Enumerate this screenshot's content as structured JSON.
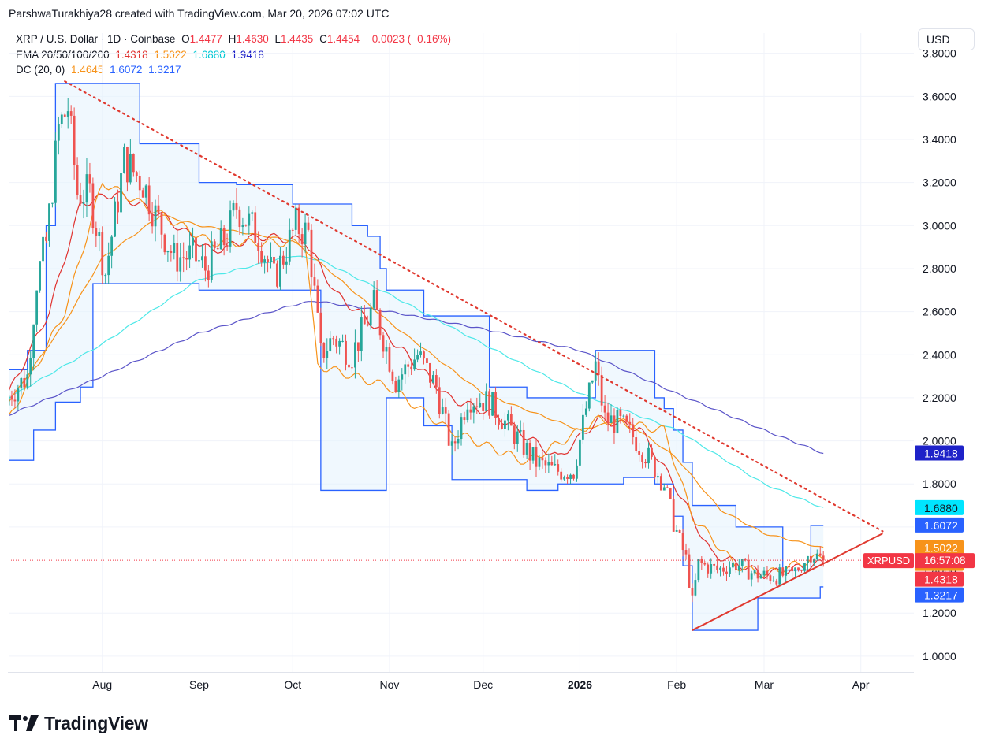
{
  "attribution": "ParshwaTurakhiya28 created with TradingView.com, Mar 20, 2026 07:02 UTC",
  "currency_button": "USD",
  "legend": {
    "symbol": "XRP / U.S. Dollar · 1D · Coinbase",
    "o_label": "O",
    "o": "1.4477",
    "h_label": "H",
    "h": "1.4630",
    "l_label": "L",
    "l": "1.4435",
    "c_label": "C",
    "c": "1.4454",
    "change": "−0.0023 (−0.16%)",
    "ema_label": "EMA 20/50/100/200",
    "ema20": "1.4318",
    "ema50": "1.5022",
    "ema100": "1.6880",
    "ema200": "1.9418",
    "dc_label": "DC (20, 0)",
    "dc_mid": "1.4645",
    "dc_upper": "1.6072",
    "dc_lower": "1.3217"
  },
  "logo_text": "TradingView",
  "colors": {
    "up": "#26a69a",
    "down": "#ef5350",
    "ema20": "#e0322f",
    "ema50": "#f7931a",
    "ema100": "#4de8e8",
    "ema200": "#5b55c9",
    "dc_band": "#2962ff",
    "dc_mid": "#f7931a",
    "dc_fill": "#e3f2fd",
    "trendline": "#e0392f"
  },
  "chart_data": {
    "type": "candlestick",
    "title": "XRP / U.S. Dollar · 1D · Coinbase",
    "y_axis": {
      "ticks": [
        "1.0000",
        "1.2000",
        "1.4000",
        "1.6000",
        "1.8000",
        "2.0000",
        "2.2000",
        "2.4000",
        "2.6000",
        "2.8000",
        "3.0000",
        "3.2000",
        "3.4000",
        "3.6000",
        "3.8000"
      ],
      "ylim": [
        0.93,
        3.85
      ],
      "position": "right"
    },
    "x_axis": {
      "ticks": [
        {
          "label": "Aug",
          "date": "2025-08-01"
        },
        {
          "label": "Sep",
          "date": "2025-09-01"
        },
        {
          "label": "Oct",
          "date": "2025-10-01"
        },
        {
          "label": "Nov",
          "date": "2025-11-01"
        },
        {
          "label": "Dec",
          "date": "2025-12-01"
        },
        {
          "label": "2026",
          "date": "2026-01-01",
          "bold": true
        },
        {
          "label": "Feb",
          "date": "2026-02-01"
        },
        {
          "label": "Mar",
          "date": "2026-03-01"
        },
        {
          "label": "Apr",
          "date": "2026-04-01"
        }
      ],
      "range": [
        "2025-07-02",
        "2026-04-18"
      ]
    },
    "grid": true,
    "close_keypoints": [
      {
        "date": "2025-07-02",
        "close": 2.21
      },
      {
        "date": "2025-07-08",
        "close": 2.3
      },
      {
        "date": "2025-07-11",
        "close": 2.75
      },
      {
        "date": "2025-07-14",
        "close": 2.92
      },
      {
        "date": "2025-07-18",
        "close": 3.45
      },
      {
        "date": "2025-07-21",
        "close": 3.55
      },
      {
        "date": "2025-07-24",
        "close": 3.15
      },
      {
        "date": "2025-07-28",
        "close": 3.15
      },
      {
        "date": "2025-08-02",
        "close": 2.78
      },
      {
        "date": "2025-08-08",
        "close": 3.3
      },
      {
        "date": "2025-08-14",
        "close": 3.2
      },
      {
        "date": "2025-08-18",
        "close": 3.05
      },
      {
        "date": "2025-08-24",
        "close": 2.85
      },
      {
        "date": "2025-08-30",
        "close": 2.86
      },
      {
        "date": "2025-09-03",
        "close": 2.8
      },
      {
        "date": "2025-09-10",
        "close": 2.95
      },
      {
        "date": "2025-09-13",
        "close": 3.09
      },
      {
        "date": "2025-09-20",
        "close": 2.95
      },
      {
        "date": "2025-09-25",
        "close": 2.75
      },
      {
        "date": "2025-10-02",
        "close": 3.0
      },
      {
        "date": "2025-10-06",
        "close": 2.96
      },
      {
        "date": "2025-10-10",
        "close": 2.4
      },
      {
        "date": "2025-10-14",
        "close": 2.48
      },
      {
        "date": "2025-10-20",
        "close": 2.4
      },
      {
        "date": "2025-10-27",
        "close": 2.63
      },
      {
        "date": "2025-11-03",
        "close": 2.28
      },
      {
        "date": "2025-11-10",
        "close": 2.4
      },
      {
        "date": "2025-11-16",
        "close": 2.25
      },
      {
        "date": "2025-11-21",
        "close": 1.95
      },
      {
        "date": "2025-11-26",
        "close": 2.2
      },
      {
        "date": "2025-12-03",
        "close": 2.18
      },
      {
        "date": "2025-12-10",
        "close": 2.05
      },
      {
        "date": "2025-12-18",
        "close": 1.9
      },
      {
        "date": "2025-12-24",
        "close": 1.86
      },
      {
        "date": "2025-12-30",
        "close": 1.86
      },
      {
        "date": "2026-01-03",
        "close": 2.15
      },
      {
        "date": "2026-01-06",
        "close": 2.35
      },
      {
        "date": "2026-01-09",
        "close": 2.1
      },
      {
        "date": "2026-01-14",
        "close": 2.08
      },
      {
        "date": "2026-01-18",
        "close": 2.02
      },
      {
        "date": "2026-01-23",
        "close": 1.92
      },
      {
        "date": "2026-01-28",
        "close": 1.8
      },
      {
        "date": "2026-01-31",
        "close": 1.62
      },
      {
        "date": "2026-02-04",
        "close": 1.45
      },
      {
        "date": "2026-02-06",
        "close": 1.25
      },
      {
        "date": "2026-02-08",
        "close": 1.43
      },
      {
        "date": "2026-02-14",
        "close": 1.4
      },
      {
        "date": "2026-02-20",
        "close": 1.43
      },
      {
        "date": "2026-02-26",
        "close": 1.38
      },
      {
        "date": "2026-03-03",
        "close": 1.37
      },
      {
        "date": "2026-03-10",
        "close": 1.38
      },
      {
        "date": "2026-03-16",
        "close": 1.48
      },
      {
        "date": "2026-03-20",
        "close": 1.4454
      }
    ],
    "lines": [
      {
        "name": "EMA 200",
        "color": "#5b55c9",
        "points": [
          {
            "date": "2025-07-02",
            "value": 2.12
          },
          {
            "date": "2025-08-01",
            "value": 2.3
          },
          {
            "date": "2025-09-01",
            "value": 2.5
          },
          {
            "date": "2025-10-01",
            "value": 2.63
          },
          {
            "date": "2025-10-08",
            "value": 2.65
          },
          {
            "date": "2025-11-01",
            "value": 2.6
          },
          {
            "date": "2025-12-01",
            "value": 2.52
          },
          {
            "date": "2026-01-01",
            "value": 2.42
          },
          {
            "date": "2026-02-01",
            "value": 2.22
          },
          {
            "date": "2026-03-01",
            "value": 2.05
          },
          {
            "date": "2026-03-20",
            "value": 1.9418
          }
        ]
      },
      {
        "name": "EMA 100",
        "color": "#4de8e8",
        "points": [
          {
            "date": "2025-07-02",
            "value": 2.2
          },
          {
            "date": "2025-08-01",
            "value": 2.45
          },
          {
            "date": "2025-09-01",
            "value": 2.75
          },
          {
            "date": "2025-10-01",
            "value": 2.86
          },
          {
            "date": "2025-10-10",
            "value": 2.84
          },
          {
            "date": "2025-11-01",
            "value": 2.68
          },
          {
            "date": "2025-12-01",
            "value": 2.45
          },
          {
            "date": "2026-01-01",
            "value": 2.22
          },
          {
            "date": "2026-02-01",
            "value": 2.05
          },
          {
            "date": "2026-03-01",
            "value": 1.8
          },
          {
            "date": "2026-03-20",
            "value": 1.688
          }
        ]
      },
      {
        "name": "EMA 50",
        "color": "#f7931a",
        "points": [
          {
            "date": "2025-07-02",
            "value": 2.18
          },
          {
            "date": "2025-07-20",
            "value": 2.55
          },
          {
            "date": "2025-08-01",
            "value": 2.85
          },
          {
            "date": "2025-08-20",
            "value": 3.05
          },
          {
            "date": "2025-09-01",
            "value": 3.0
          },
          {
            "date": "2025-10-01",
            "value": 2.93
          },
          {
            "date": "2025-10-12",
            "value": 2.8
          },
          {
            "date": "2025-11-01",
            "value": 2.55
          },
          {
            "date": "2025-12-01",
            "value": 2.22
          },
          {
            "date": "2026-01-01",
            "value": 2.05
          },
          {
            "date": "2026-01-15",
            "value": 2.1
          },
          {
            "date": "2026-02-01",
            "value": 1.92
          },
          {
            "date": "2026-02-15",
            "value": 1.68
          },
          {
            "date": "2026-03-01",
            "value": 1.57
          },
          {
            "date": "2026-03-20",
            "value": 1.5022
          }
        ]
      },
      {
        "name": "EMA 20",
        "color": "#e0322f",
        "points": [
          {
            "date": "2025-07-02",
            "value": 2.22
          },
          {
            "date": "2025-07-15",
            "value": 2.6
          },
          {
            "date": "2025-07-25",
            "value": 3.1
          },
          {
            "date": "2025-08-05",
            "value": 3.15
          },
          {
            "date": "2025-08-20",
            "value": 3.05
          },
          {
            "date": "2025-09-05",
            "value": 2.88
          },
          {
            "date": "2025-09-20",
            "value": 2.95
          },
          {
            "date": "2025-10-05",
            "value": 2.93
          },
          {
            "date": "2025-10-15",
            "value": 2.68
          },
          {
            "date": "2025-11-01",
            "value": 2.48
          },
          {
            "date": "2025-11-20",
            "value": 2.2
          },
          {
            "date": "2025-12-05",
            "value": 2.12
          },
          {
            "date": "2025-12-25",
            "value": 1.92
          },
          {
            "date": "2026-01-07",
            "value": 2.1
          },
          {
            "date": "2026-01-20",
            "value": 2.06
          },
          {
            "date": "2026-02-01",
            "value": 1.78
          },
          {
            "date": "2026-02-12",
            "value": 1.48
          },
          {
            "date": "2026-03-01",
            "value": 1.38
          },
          {
            "date": "2026-03-20",
            "value": 1.4318
          }
        ]
      },
      {
        "name": "DC mid",
        "color": "#f7931a",
        "points": [
          {
            "date": "2025-07-02",
            "value": 2.1
          },
          {
            "date": "2025-07-20",
            "value": 2.6
          },
          {
            "date": "2025-08-01",
            "value": 3.2
          },
          {
            "date": "2025-08-20",
            "value": 3.05
          },
          {
            "date": "2025-09-05",
            "value": 2.92
          },
          {
            "date": "2025-10-05",
            "value": 2.92
          },
          {
            "date": "2025-10-09",
            "value": 2.35
          },
          {
            "date": "2025-11-01",
            "value": 2.25
          },
          {
            "date": "2025-11-20",
            "value": 2.05
          },
          {
            "date": "2025-12-15",
            "value": 1.9
          },
          {
            "date": "2026-01-07",
            "value": 2.1
          },
          {
            "date": "2026-01-28",
            "value": 2.05
          },
          {
            "date": "2026-02-06",
            "value": 1.65
          },
          {
            "date": "2026-02-20",
            "value": 1.42
          },
          {
            "date": "2026-03-01",
            "value": 1.38
          },
          {
            "date": "2026-03-20",
            "value": 1.4645
          }
        ]
      }
    ],
    "donchian_steps": [
      {
        "date": "2025-07-02",
        "upper": 2.33,
        "lower": 1.91
      },
      {
        "date": "2025-07-07",
        "upper": 2.33,
        "lower": 1.91
      },
      {
        "date": "2025-07-08",
        "upper": 2.42,
        "lower": 1.91
      },
      {
        "date": "2025-07-10",
        "upper": 2.42,
        "lower": 2.05
      },
      {
        "date": "2025-07-14",
        "upper": 3.0,
        "lower": 2.05
      },
      {
        "date": "2025-07-17",
        "upper": 3.66,
        "lower": 2.18
      },
      {
        "date": "2025-07-25",
        "upper": 3.66,
        "lower": 2.25
      },
      {
        "date": "2025-07-29",
        "upper": 3.66,
        "lower": 2.73
      },
      {
        "date": "2025-08-10",
        "upper": 3.66,
        "lower": 2.73
      },
      {
        "date": "2025-08-13",
        "upper": 3.38,
        "lower": 2.73
      },
      {
        "date": "2025-08-28",
        "upper": 3.38,
        "lower": 2.73
      },
      {
        "date": "2025-09-01",
        "upper": 3.2,
        "lower": 2.7
      },
      {
        "date": "2025-09-12",
        "upper": 3.2,
        "lower": 2.7
      },
      {
        "date": "2025-09-13",
        "upper": 3.19,
        "lower": 2.7
      },
      {
        "date": "2025-09-26",
        "upper": 3.19,
        "lower": 2.7
      },
      {
        "date": "2025-10-01",
        "upper": 3.1,
        "lower": 2.7
      },
      {
        "date": "2025-10-09",
        "upper": 3.1,
        "lower": 2.7
      },
      {
        "date": "2025-10-10",
        "upper": 3.1,
        "lower": 1.77
      },
      {
        "date": "2025-10-20",
        "upper": 3.0,
        "lower": 1.77
      },
      {
        "date": "2025-10-25",
        "upper": 2.95,
        "lower": 1.77
      },
      {
        "date": "2025-10-29",
        "upper": 2.8,
        "lower": 1.77
      },
      {
        "date": "2025-10-31",
        "upper": 2.7,
        "lower": 2.2
      },
      {
        "date": "2025-11-12",
        "upper": 2.58,
        "lower": 2.07
      },
      {
        "date": "2025-11-20",
        "upper": 2.58,
        "lower": 2.07
      },
      {
        "date": "2025-11-21",
        "upper": 2.58,
        "lower": 1.82
      },
      {
        "date": "2025-12-03",
        "upper": 2.25,
        "lower": 1.82
      },
      {
        "date": "2025-12-15",
        "upper": 2.2,
        "lower": 1.77
      },
      {
        "date": "2025-12-25",
        "upper": 2.2,
        "lower": 1.8
      },
      {
        "date": "2026-01-02",
        "upper": 2.2,
        "lower": 1.8
      },
      {
        "date": "2026-01-06",
        "upper": 2.42,
        "lower": 1.8
      },
      {
        "date": "2026-01-15",
        "upper": 2.42,
        "lower": 1.83
      },
      {
        "date": "2026-01-24",
        "upper": 2.42,
        "lower": 1.83
      },
      {
        "date": "2026-01-25",
        "upper": 2.2,
        "lower": 1.8
      },
      {
        "date": "2026-01-28",
        "upper": 2.15,
        "lower": 1.8
      },
      {
        "date": "2026-01-31",
        "upper": 2.05,
        "lower": 1.65
      },
      {
        "date": "2026-02-03",
        "upper": 1.9,
        "lower": 1.42
      },
      {
        "date": "2026-02-06",
        "upper": 1.7,
        "lower": 1.12
      },
      {
        "date": "2026-02-20",
        "upper": 1.6,
        "lower": 1.12
      },
      {
        "date": "2026-02-26",
        "upper": 1.6,
        "lower": 1.12
      },
      {
        "date": "2026-02-27",
        "upper": 1.6,
        "lower": 1.27
      },
      {
        "date": "2026-03-07",
        "upper": 1.4,
        "lower": 1.27
      },
      {
        "date": "2026-03-14",
        "upper": 1.4,
        "lower": 1.27
      },
      {
        "date": "2026-03-16",
        "upper": 1.6072,
        "lower": 1.27
      },
      {
        "date": "2026-03-19",
        "upper": 1.6072,
        "lower": 1.3217
      },
      {
        "date": "2026-03-20",
        "upper": 1.6072,
        "lower": 1.3217
      }
    ],
    "trendlines": [
      {
        "name": "descending",
        "style": "dotted",
        "from": {
          "date": "2025-07-20",
          "value": 3.67
        },
        "to": {
          "date": "2026-04-08",
          "value": 1.58
        }
      },
      {
        "name": "ascending",
        "style": "solid",
        "from": {
          "date": "2026-02-06",
          "value": 1.12
        },
        "to": {
          "date": "2026-04-08",
          "value": 1.57
        }
      }
    ],
    "current_price_line": 1.4454,
    "price_labels": [
      {
        "text": "1.9418",
        "value": 1.9418,
        "bg": "#1e22c8",
        "fg": "#ffffff"
      },
      {
        "text": "1.6880",
        "value": 1.688,
        "bg": "#00e5ff",
        "fg": "#131722"
      },
      {
        "text": "1.6072",
        "value": 1.6072,
        "bg": "#2962ff",
        "fg": "#ffffff"
      },
      {
        "text": "1.5022",
        "value": 1.5022,
        "bg": "#f7931a",
        "fg": "#ffffff"
      },
      {
        "text": "1.4645",
        "value": 1.4645,
        "bg": "#f7931a",
        "fg": "#ffffff"
      },
      {
        "text": "1.4318",
        "value": 1.4318,
        "bg": "#f23645",
        "fg": "#ffffff"
      },
      {
        "text": "1.3217",
        "value": 1.3217,
        "bg": "#2962ff",
        "fg": "#ffffff"
      }
    ],
    "symbol_tag": {
      "symbol": "XRPUSD",
      "countdown": "16:57:08",
      "value": 1.4454
    }
  }
}
